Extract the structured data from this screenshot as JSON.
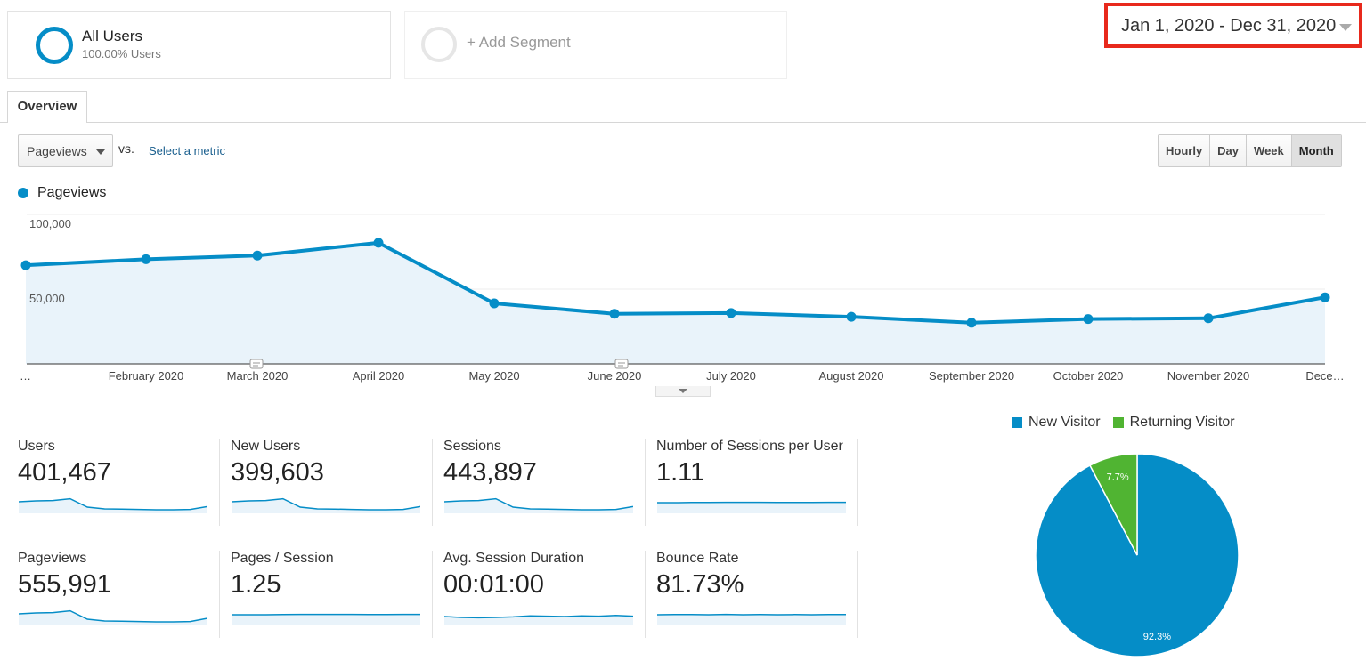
{
  "segments": {
    "all_users": {
      "title": "All Users",
      "subtitle": "100.00% Users"
    },
    "add_segment": {
      "label": "+ Add Segment"
    }
  },
  "date_range": {
    "label": "Jan 1, 2020 - Dec 31, 2020"
  },
  "tabs": {
    "overview": "Overview"
  },
  "controls": {
    "metric_select": "Pageviews",
    "vs": "vs.",
    "select_metric": "Select a metric",
    "granularity": [
      "Hourly",
      "Day",
      "Week",
      "Month"
    ],
    "granularity_selected": "Month"
  },
  "colors": {
    "primary": "#058dc7",
    "returning": "#50b432",
    "area_fill": "#e9f3fa",
    "highlight_border": "#e8291c"
  },
  "chart_data": [
    {
      "type": "area",
      "legend": [
        "Pageviews"
      ],
      "y_ticks": [
        "100,000",
        "50,000"
      ],
      "ylim": [
        0,
        100000
      ],
      "x_labels": [
        "…",
        "February 2020",
        "March 2020",
        "April 2020",
        "May 2020",
        "June 2020",
        "July 2020",
        "August 2020",
        "September 2020",
        "October 2020",
        "November 2020",
        "Dece…"
      ],
      "series": [
        {
          "name": "Pageviews",
          "values": [
            66000,
            70000,
            72500,
            81000,
            40500,
            33500,
            34000,
            31500,
            27500,
            30000,
            30500,
            44500
          ]
        }
      ],
      "grid": true,
      "annotation_markers": [
        "March 2020",
        "June 2020"
      ]
    },
    {
      "type": "pie",
      "legend": [
        "New Visitor",
        "Returning Visitor"
      ],
      "slices": [
        {
          "label": "New Visitor",
          "value": 92.3,
          "label_text": "92.3%"
        },
        {
          "label": "Returning Visitor",
          "value": 7.7,
          "label_text": "7.7%"
        }
      ]
    }
  ],
  "metrics": [
    {
      "label": "Users",
      "value": "401,467",
      "spark": [
        0.55,
        0.6,
        0.62,
        0.72,
        0.25,
        0.15,
        0.14,
        0.12,
        0.1,
        0.1,
        0.12,
        0.28
      ]
    },
    {
      "label": "New Users",
      "value": "399,603",
      "spark": [
        0.55,
        0.6,
        0.62,
        0.72,
        0.25,
        0.15,
        0.14,
        0.12,
        0.1,
        0.1,
        0.12,
        0.28
      ]
    },
    {
      "label": "Sessions",
      "value": "443,897",
      "spark": [
        0.55,
        0.6,
        0.62,
        0.72,
        0.25,
        0.15,
        0.14,
        0.12,
        0.1,
        0.1,
        0.12,
        0.28
      ]
    },
    {
      "label": "Number of Sessions per User",
      "value": "1.11",
      "spark": [
        0.5,
        0.5,
        0.51,
        0.51,
        0.52,
        0.52,
        0.52,
        0.51,
        0.51,
        0.51,
        0.52,
        0.52
      ]
    },
    {
      "label": "Pageviews",
      "value": "555,991",
      "spark": [
        0.55,
        0.6,
        0.62,
        0.72,
        0.25,
        0.15,
        0.14,
        0.12,
        0.1,
        0.1,
        0.12,
        0.3
      ]
    },
    {
      "label": "Pages / Session",
      "value": "1.25",
      "spark": [
        0.5,
        0.5,
        0.5,
        0.51,
        0.52,
        0.52,
        0.52,
        0.52,
        0.51,
        0.51,
        0.52,
        0.52
      ]
    },
    {
      "label": "Avg. Session Duration",
      "value": "00:01:00",
      "spark": [
        0.4,
        0.35,
        0.33,
        0.35,
        0.38,
        0.44,
        0.42,
        0.4,
        0.44,
        0.42,
        0.46,
        0.42
      ]
    },
    {
      "label": "Bounce Rate",
      "value": "81.73%",
      "spark": [
        0.5,
        0.51,
        0.51,
        0.5,
        0.52,
        0.5,
        0.51,
        0.5,
        0.51,
        0.5,
        0.51,
        0.51
      ]
    }
  ]
}
